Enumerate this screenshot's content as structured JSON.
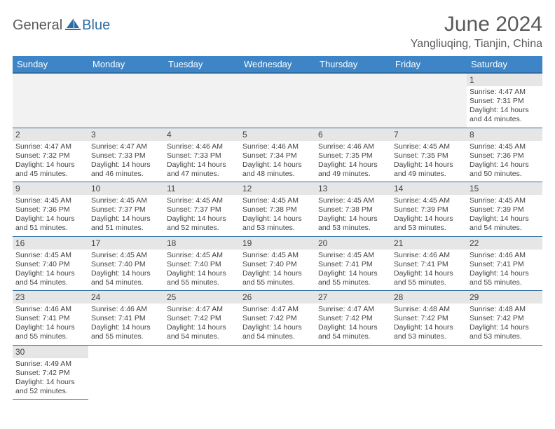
{
  "logo": {
    "part1": "General",
    "part2": "Blue"
  },
  "title": "June 2024",
  "location": "Yangliuqing, Tianjin, China",
  "colors": {
    "header_bg": "#3d85c6",
    "header_border": "#2d6ca2",
    "cell_border": "#2d6ca2",
    "daynum_bg": "#e6e6e6",
    "text": "#444444",
    "logo_gray": "#5a5a5a",
    "logo_blue": "#2d6ca2"
  },
  "weekdays": [
    "Sunday",
    "Monday",
    "Tuesday",
    "Wednesday",
    "Thursday",
    "Friday",
    "Saturday"
  ],
  "weeks": [
    [
      null,
      null,
      null,
      null,
      null,
      null,
      {
        "n": "1",
        "sr": "4:47 AM",
        "ss": "7:31 PM",
        "dl": "14 hours and 44 minutes."
      }
    ],
    [
      {
        "n": "2",
        "sr": "4:47 AM",
        "ss": "7:32 PM",
        "dl": "14 hours and 45 minutes."
      },
      {
        "n": "3",
        "sr": "4:47 AM",
        "ss": "7:33 PM",
        "dl": "14 hours and 46 minutes."
      },
      {
        "n": "4",
        "sr": "4:46 AM",
        "ss": "7:33 PM",
        "dl": "14 hours and 47 minutes."
      },
      {
        "n": "5",
        "sr": "4:46 AM",
        "ss": "7:34 PM",
        "dl": "14 hours and 48 minutes."
      },
      {
        "n": "6",
        "sr": "4:46 AM",
        "ss": "7:35 PM",
        "dl": "14 hours and 49 minutes."
      },
      {
        "n": "7",
        "sr": "4:45 AM",
        "ss": "7:35 PM",
        "dl": "14 hours and 49 minutes."
      },
      {
        "n": "8",
        "sr": "4:45 AM",
        "ss": "7:36 PM",
        "dl": "14 hours and 50 minutes."
      }
    ],
    [
      {
        "n": "9",
        "sr": "4:45 AM",
        "ss": "7:36 PM",
        "dl": "14 hours and 51 minutes."
      },
      {
        "n": "10",
        "sr": "4:45 AM",
        "ss": "7:37 PM",
        "dl": "14 hours and 51 minutes."
      },
      {
        "n": "11",
        "sr": "4:45 AM",
        "ss": "7:37 PM",
        "dl": "14 hours and 52 minutes."
      },
      {
        "n": "12",
        "sr": "4:45 AM",
        "ss": "7:38 PM",
        "dl": "14 hours and 53 minutes."
      },
      {
        "n": "13",
        "sr": "4:45 AM",
        "ss": "7:38 PM",
        "dl": "14 hours and 53 minutes."
      },
      {
        "n": "14",
        "sr": "4:45 AM",
        "ss": "7:39 PM",
        "dl": "14 hours and 53 minutes."
      },
      {
        "n": "15",
        "sr": "4:45 AM",
        "ss": "7:39 PM",
        "dl": "14 hours and 54 minutes."
      }
    ],
    [
      {
        "n": "16",
        "sr": "4:45 AM",
        "ss": "7:40 PM",
        "dl": "14 hours and 54 minutes."
      },
      {
        "n": "17",
        "sr": "4:45 AM",
        "ss": "7:40 PM",
        "dl": "14 hours and 54 minutes."
      },
      {
        "n": "18",
        "sr": "4:45 AM",
        "ss": "7:40 PM",
        "dl": "14 hours and 55 minutes."
      },
      {
        "n": "19",
        "sr": "4:45 AM",
        "ss": "7:40 PM",
        "dl": "14 hours and 55 minutes."
      },
      {
        "n": "20",
        "sr": "4:45 AM",
        "ss": "7:41 PM",
        "dl": "14 hours and 55 minutes."
      },
      {
        "n": "21",
        "sr": "4:46 AM",
        "ss": "7:41 PM",
        "dl": "14 hours and 55 minutes."
      },
      {
        "n": "22",
        "sr": "4:46 AM",
        "ss": "7:41 PM",
        "dl": "14 hours and 55 minutes."
      }
    ],
    [
      {
        "n": "23",
        "sr": "4:46 AM",
        "ss": "7:41 PM",
        "dl": "14 hours and 55 minutes."
      },
      {
        "n": "24",
        "sr": "4:46 AM",
        "ss": "7:41 PM",
        "dl": "14 hours and 55 minutes."
      },
      {
        "n": "25",
        "sr": "4:47 AM",
        "ss": "7:42 PM",
        "dl": "14 hours and 54 minutes."
      },
      {
        "n": "26",
        "sr": "4:47 AM",
        "ss": "7:42 PM",
        "dl": "14 hours and 54 minutes."
      },
      {
        "n": "27",
        "sr": "4:47 AM",
        "ss": "7:42 PM",
        "dl": "14 hours and 54 minutes."
      },
      {
        "n": "28",
        "sr": "4:48 AM",
        "ss": "7:42 PM",
        "dl": "14 hours and 53 minutes."
      },
      {
        "n": "29",
        "sr": "4:48 AM",
        "ss": "7:42 PM",
        "dl": "14 hours and 53 minutes."
      }
    ],
    [
      {
        "n": "30",
        "sr": "4:49 AM",
        "ss": "7:42 PM",
        "dl": "14 hours and 52 minutes."
      },
      null,
      null,
      null,
      null,
      null,
      null
    ]
  ],
  "labels": {
    "sunrise": "Sunrise:",
    "sunset": "Sunset:",
    "daylight": "Daylight:"
  }
}
